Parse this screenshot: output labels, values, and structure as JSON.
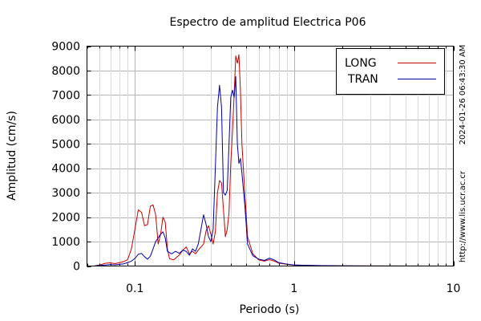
{
  "chart_data": {
    "type": "line",
    "title": "Espectro de amplitud Electrica P06",
    "xlabel": "Periodo (s)",
    "ylabel": "Amplitud (cm/s)",
    "x_scale": "log",
    "xlim": [
      0.05,
      10
    ],
    "ylim": [
      0,
      9000
    ],
    "y_ticks": [
      0,
      1000,
      2000,
      3000,
      4000,
      5000,
      6000,
      7000,
      8000,
      9000
    ],
    "x_tick_labels": [
      {
        "value": 0.1,
        "label": "0.1"
      },
      {
        "value": 1,
        "label": "1"
      },
      {
        "value": 10,
        "label": "10"
      }
    ],
    "grid": true,
    "legend_position": "top-right",
    "series": [
      {
        "name": "LONG",
        "color": "#cc0000",
        "points": [
          [
            0.055,
            0
          ],
          [
            0.06,
            40
          ],
          [
            0.065,
            110
          ],
          [
            0.07,
            130
          ],
          [
            0.075,
            100
          ],
          [
            0.08,
            140
          ],
          [
            0.085,
            180
          ],
          [
            0.09,
            260
          ],
          [
            0.095,
            700
          ],
          [
            0.1,
            1500
          ],
          [
            0.105,
            2300
          ],
          [
            0.11,
            2200
          ],
          [
            0.115,
            1650
          ],
          [
            0.12,
            1700
          ],
          [
            0.125,
            2450
          ],
          [
            0.13,
            2500
          ],
          [
            0.135,
            2100
          ],
          [
            0.14,
            900
          ],
          [
            0.145,
            1300
          ],
          [
            0.15,
            2000
          ],
          [
            0.155,
            1800
          ],
          [
            0.16,
            700
          ],
          [
            0.165,
            300
          ],
          [
            0.175,
            250
          ],
          [
            0.19,
            450
          ],
          [
            0.2,
            650
          ],
          [
            0.21,
            780
          ],
          [
            0.22,
            500
          ],
          [
            0.23,
            600
          ],
          [
            0.24,
            500
          ],
          [
            0.25,
            650
          ],
          [
            0.27,
            900
          ],
          [
            0.28,
            1450
          ],
          [
            0.29,
            1650
          ],
          [
            0.3,
            1300
          ],
          [
            0.31,
            900
          ],
          [
            0.32,
            1400
          ],
          [
            0.33,
            3000
          ],
          [
            0.34,
            3500
          ],
          [
            0.35,
            3400
          ],
          [
            0.36,
            2300
          ],
          [
            0.37,
            1200
          ],
          [
            0.38,
            1500
          ],
          [
            0.39,
            2200
          ],
          [
            0.4,
            4200
          ],
          [
            0.41,
            5500
          ],
          [
            0.42,
            7000
          ],
          [
            0.43,
            8600
          ],
          [
            0.44,
            8300
          ],
          [
            0.45,
            8650
          ],
          [
            0.46,
            7200
          ],
          [
            0.47,
            5000
          ],
          [
            0.49,
            3000
          ],
          [
            0.51,
            1200
          ],
          [
            0.55,
            500
          ],
          [
            0.6,
            250
          ],
          [
            0.65,
            200
          ],
          [
            0.7,
            260
          ],
          [
            0.75,
            200
          ],
          [
            0.8,
            120
          ],
          [
            0.9,
            70
          ],
          [
            1.0,
            40
          ],
          [
            1.2,
            25
          ],
          [
            1.5,
            12
          ],
          [
            2.0,
            8
          ],
          [
            3.0,
            4
          ],
          [
            5.0,
            2
          ],
          [
            10.0,
            0
          ]
        ]
      },
      {
        "name": "TRAN",
        "color": "#0000aa",
        "points": [
          [
            0.055,
            0
          ],
          [
            0.06,
            20
          ],
          [
            0.065,
            40
          ],
          [
            0.07,
            60
          ],
          [
            0.075,
            50
          ],
          [
            0.08,
            70
          ],
          [
            0.085,
            90
          ],
          [
            0.09,
            140
          ],
          [
            0.095,
            200
          ],
          [
            0.1,
            310
          ],
          [
            0.105,
            480
          ],
          [
            0.11,
            520
          ],
          [
            0.115,
            380
          ],
          [
            0.12,
            280
          ],
          [
            0.125,
            400
          ],
          [
            0.13,
            700
          ],
          [
            0.135,
            1000
          ],
          [
            0.14,
            1150
          ],
          [
            0.145,
            1300
          ],
          [
            0.15,
            1400
          ],
          [
            0.155,
            1150
          ],
          [
            0.16,
            600
          ],
          [
            0.17,
            500
          ],
          [
            0.18,
            600
          ],
          [
            0.19,
            520
          ],
          [
            0.2,
            650
          ],
          [
            0.21,
            600
          ],
          [
            0.22,
            440
          ],
          [
            0.23,
            700
          ],
          [
            0.24,
            600
          ],
          [
            0.25,
            900
          ],
          [
            0.26,
            1500
          ],
          [
            0.27,
            2100
          ],
          [
            0.28,
            1700
          ],
          [
            0.29,
            1200
          ],
          [
            0.3,
            1000
          ],
          [
            0.31,
            1500
          ],
          [
            0.32,
            4000
          ],
          [
            0.33,
            6500
          ],
          [
            0.34,
            7400
          ],
          [
            0.35,
            6500
          ],
          [
            0.36,
            3000
          ],
          [
            0.37,
            2900
          ],
          [
            0.38,
            3100
          ],
          [
            0.39,
            5000
          ],
          [
            0.4,
            6900
          ],
          [
            0.41,
            7200
          ],
          [
            0.42,
            6900
          ],
          [
            0.43,
            7750
          ],
          [
            0.44,
            5000
          ],
          [
            0.45,
            4200
          ],
          [
            0.46,
            4400
          ],
          [
            0.47,
            3800
          ],
          [
            0.49,
            2500
          ],
          [
            0.51,
            900
          ],
          [
            0.55,
            420
          ],
          [
            0.6,
            280
          ],
          [
            0.65,
            230
          ],
          [
            0.7,
            320
          ],
          [
            0.75,
            250
          ],
          [
            0.8,
            140
          ],
          [
            0.9,
            80
          ],
          [
            1.0,
            45
          ],
          [
            1.2,
            28
          ],
          [
            1.5,
            15
          ],
          [
            2.0,
            10
          ],
          [
            3.0,
            5
          ],
          [
            5.0,
            3
          ],
          [
            10.0,
            0
          ]
        ]
      }
    ]
  },
  "side_text": {
    "timestamp": "2024-01-26 06:43:30 AM",
    "url": "http://www.lis.ucr.ac.cr"
  }
}
